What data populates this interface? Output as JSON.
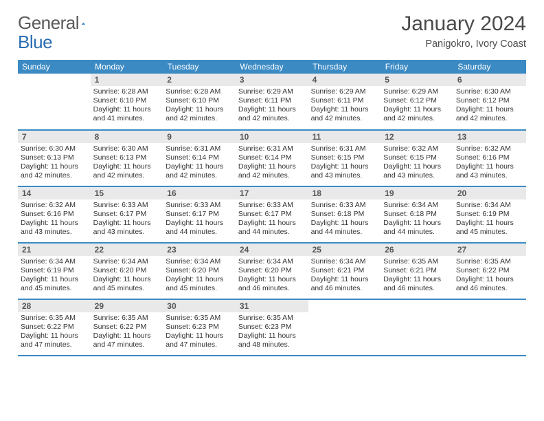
{
  "logo": {
    "text1": "General",
    "text2": "Blue"
  },
  "title": "January 2024",
  "location": "Panigokro, Ivory Coast",
  "colors": {
    "header_bg": "#3b8ac4",
    "header_text": "#ffffff",
    "daynum_bg": "#e9e9e9",
    "rule": "#3b8ac4",
    "logo_blue": "#2a6db3"
  },
  "weekdays": [
    "Sunday",
    "Monday",
    "Tuesday",
    "Wednesday",
    "Thursday",
    "Friday",
    "Saturday"
  ],
  "weeks": [
    [
      null,
      {
        "n": "1",
        "sunrise": "Sunrise: 6:28 AM",
        "sunset": "Sunset: 6:10 PM",
        "day1": "Daylight: 11 hours",
        "day2": "and 41 minutes."
      },
      {
        "n": "2",
        "sunrise": "Sunrise: 6:28 AM",
        "sunset": "Sunset: 6:10 PM",
        "day1": "Daylight: 11 hours",
        "day2": "and 42 minutes."
      },
      {
        "n": "3",
        "sunrise": "Sunrise: 6:29 AM",
        "sunset": "Sunset: 6:11 PM",
        "day1": "Daylight: 11 hours",
        "day2": "and 42 minutes."
      },
      {
        "n": "4",
        "sunrise": "Sunrise: 6:29 AM",
        "sunset": "Sunset: 6:11 PM",
        "day1": "Daylight: 11 hours",
        "day2": "and 42 minutes."
      },
      {
        "n": "5",
        "sunrise": "Sunrise: 6:29 AM",
        "sunset": "Sunset: 6:12 PM",
        "day1": "Daylight: 11 hours",
        "day2": "and 42 minutes."
      },
      {
        "n": "6",
        "sunrise": "Sunrise: 6:30 AM",
        "sunset": "Sunset: 6:12 PM",
        "day1": "Daylight: 11 hours",
        "day2": "and 42 minutes."
      }
    ],
    [
      {
        "n": "7",
        "sunrise": "Sunrise: 6:30 AM",
        "sunset": "Sunset: 6:13 PM",
        "day1": "Daylight: 11 hours",
        "day2": "and 42 minutes."
      },
      {
        "n": "8",
        "sunrise": "Sunrise: 6:30 AM",
        "sunset": "Sunset: 6:13 PM",
        "day1": "Daylight: 11 hours",
        "day2": "and 42 minutes."
      },
      {
        "n": "9",
        "sunrise": "Sunrise: 6:31 AM",
        "sunset": "Sunset: 6:14 PM",
        "day1": "Daylight: 11 hours",
        "day2": "and 42 minutes."
      },
      {
        "n": "10",
        "sunrise": "Sunrise: 6:31 AM",
        "sunset": "Sunset: 6:14 PM",
        "day1": "Daylight: 11 hours",
        "day2": "and 42 minutes."
      },
      {
        "n": "11",
        "sunrise": "Sunrise: 6:31 AM",
        "sunset": "Sunset: 6:15 PM",
        "day1": "Daylight: 11 hours",
        "day2": "and 43 minutes."
      },
      {
        "n": "12",
        "sunrise": "Sunrise: 6:32 AM",
        "sunset": "Sunset: 6:15 PM",
        "day1": "Daylight: 11 hours",
        "day2": "and 43 minutes."
      },
      {
        "n": "13",
        "sunrise": "Sunrise: 6:32 AM",
        "sunset": "Sunset: 6:16 PM",
        "day1": "Daylight: 11 hours",
        "day2": "and 43 minutes."
      }
    ],
    [
      {
        "n": "14",
        "sunrise": "Sunrise: 6:32 AM",
        "sunset": "Sunset: 6:16 PM",
        "day1": "Daylight: 11 hours",
        "day2": "and 43 minutes."
      },
      {
        "n": "15",
        "sunrise": "Sunrise: 6:33 AM",
        "sunset": "Sunset: 6:17 PM",
        "day1": "Daylight: 11 hours",
        "day2": "and 43 minutes."
      },
      {
        "n": "16",
        "sunrise": "Sunrise: 6:33 AM",
        "sunset": "Sunset: 6:17 PM",
        "day1": "Daylight: 11 hours",
        "day2": "and 44 minutes."
      },
      {
        "n": "17",
        "sunrise": "Sunrise: 6:33 AM",
        "sunset": "Sunset: 6:17 PM",
        "day1": "Daylight: 11 hours",
        "day2": "and 44 minutes."
      },
      {
        "n": "18",
        "sunrise": "Sunrise: 6:33 AM",
        "sunset": "Sunset: 6:18 PM",
        "day1": "Daylight: 11 hours",
        "day2": "and 44 minutes."
      },
      {
        "n": "19",
        "sunrise": "Sunrise: 6:34 AM",
        "sunset": "Sunset: 6:18 PM",
        "day1": "Daylight: 11 hours",
        "day2": "and 44 minutes."
      },
      {
        "n": "20",
        "sunrise": "Sunrise: 6:34 AM",
        "sunset": "Sunset: 6:19 PM",
        "day1": "Daylight: 11 hours",
        "day2": "and 45 minutes."
      }
    ],
    [
      {
        "n": "21",
        "sunrise": "Sunrise: 6:34 AM",
        "sunset": "Sunset: 6:19 PM",
        "day1": "Daylight: 11 hours",
        "day2": "and 45 minutes."
      },
      {
        "n": "22",
        "sunrise": "Sunrise: 6:34 AM",
        "sunset": "Sunset: 6:20 PM",
        "day1": "Daylight: 11 hours",
        "day2": "and 45 minutes."
      },
      {
        "n": "23",
        "sunrise": "Sunrise: 6:34 AM",
        "sunset": "Sunset: 6:20 PM",
        "day1": "Daylight: 11 hours",
        "day2": "and 45 minutes."
      },
      {
        "n": "24",
        "sunrise": "Sunrise: 6:34 AM",
        "sunset": "Sunset: 6:20 PM",
        "day1": "Daylight: 11 hours",
        "day2": "and 46 minutes."
      },
      {
        "n": "25",
        "sunrise": "Sunrise: 6:34 AM",
        "sunset": "Sunset: 6:21 PM",
        "day1": "Daylight: 11 hours",
        "day2": "and 46 minutes."
      },
      {
        "n": "26",
        "sunrise": "Sunrise: 6:35 AM",
        "sunset": "Sunset: 6:21 PM",
        "day1": "Daylight: 11 hours",
        "day2": "and 46 minutes."
      },
      {
        "n": "27",
        "sunrise": "Sunrise: 6:35 AM",
        "sunset": "Sunset: 6:22 PM",
        "day1": "Daylight: 11 hours",
        "day2": "and 46 minutes."
      }
    ],
    [
      {
        "n": "28",
        "sunrise": "Sunrise: 6:35 AM",
        "sunset": "Sunset: 6:22 PM",
        "day1": "Daylight: 11 hours",
        "day2": "and 47 minutes."
      },
      {
        "n": "29",
        "sunrise": "Sunrise: 6:35 AM",
        "sunset": "Sunset: 6:22 PM",
        "day1": "Daylight: 11 hours",
        "day2": "and 47 minutes."
      },
      {
        "n": "30",
        "sunrise": "Sunrise: 6:35 AM",
        "sunset": "Sunset: 6:23 PM",
        "day1": "Daylight: 11 hours",
        "day2": "and 47 minutes."
      },
      {
        "n": "31",
        "sunrise": "Sunrise: 6:35 AM",
        "sunset": "Sunset: 6:23 PM",
        "day1": "Daylight: 11 hours",
        "day2": "and 48 minutes."
      },
      null,
      null,
      null
    ]
  ]
}
